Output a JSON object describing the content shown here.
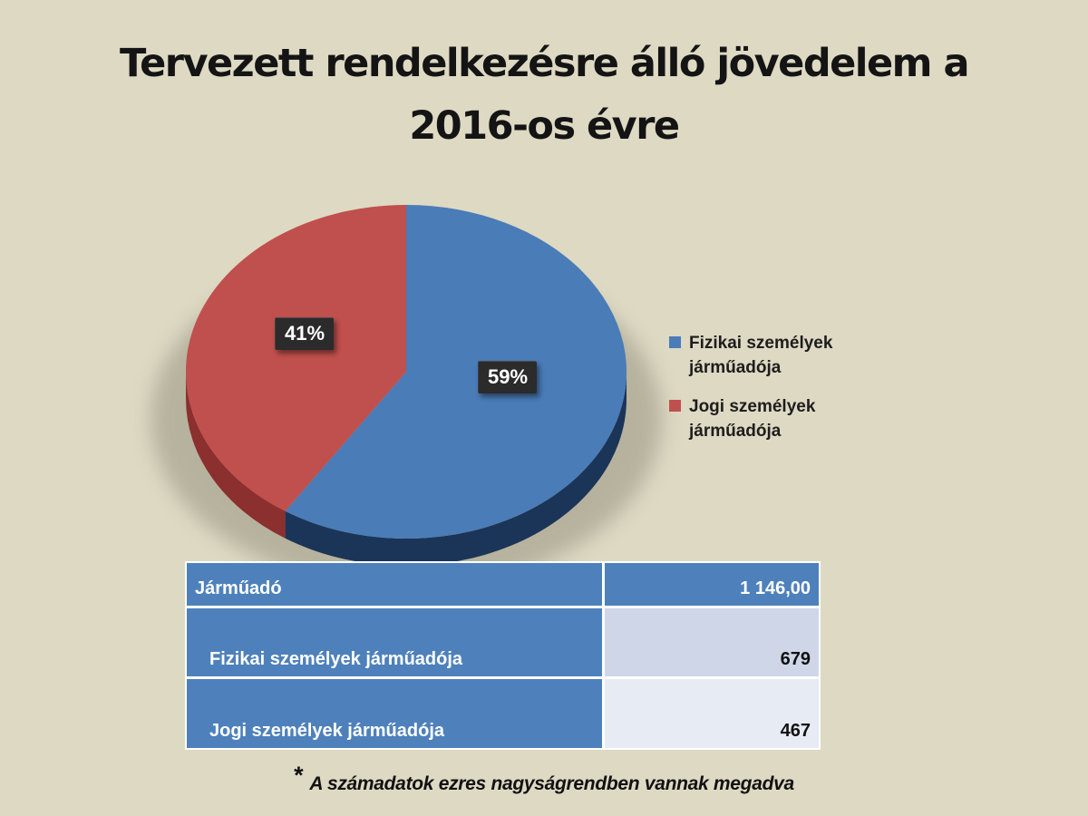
{
  "slide": {
    "background_color": "#DED9C3",
    "title_line1": "Tervezett rendelkezésre álló jövedelem a",
    "title_line2": "2016-os évre",
    "footnote_star": "*",
    "footnote": "A számadatok ezres nagyságrendben vannak megadva"
  },
  "chart_data": {
    "type": "pie",
    "is_3d": true,
    "title": "",
    "categories": [
      "Fizikai személyek járműadója",
      "Jogi személyek járműadója"
    ],
    "values": [
      679,
      467
    ],
    "total": 1146,
    "percent_labels": [
      "59%",
      "41%"
    ],
    "percentages": [
      59,
      41
    ],
    "colors": [
      "#4A7CB8",
      "#C0504D"
    ],
    "side_colors": [
      "#1B3558",
      "#8B2F2F"
    ],
    "start_angle_deg": 0,
    "direction": "clockwise",
    "legend_position": "right",
    "label_style": "dark-box-white-text"
  },
  "legend": {
    "items": [
      {
        "label": "Fizikai személyek járműadója",
        "color": "#4A7CB8"
      },
      {
        "label": "Jogi személyek járműadója",
        "color": "#C0504D"
      }
    ]
  },
  "table": {
    "header": {
      "label": "Járműadó",
      "value": "1 146,00"
    },
    "rows": [
      {
        "label": "Fizikai személyek járműadója",
        "value": "679"
      },
      {
        "label": "Jogi személyek járműadója",
        "value": "467"
      }
    ],
    "header_bg": "#4E81BB",
    "band_colors": [
      "#CFD6E8",
      "#E7EBF4"
    ]
  }
}
